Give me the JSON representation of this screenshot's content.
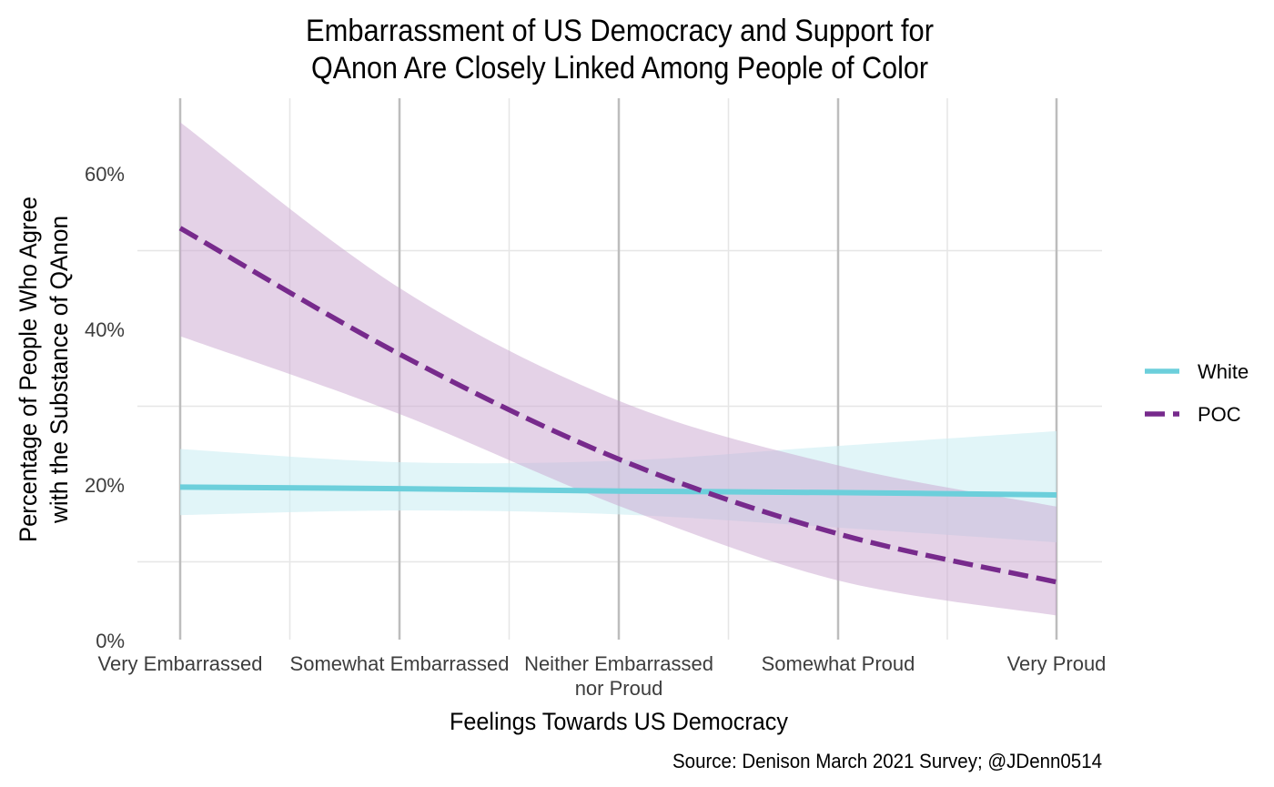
{
  "chart_data": {
    "type": "line",
    "title": [
      "Embarrassment of US Democracy and Support for",
      "QAnon Are Closely Linked Among People of Color"
    ],
    "xlabel": "Feelings Towards US Democracy",
    "ylabel": [
      "Percentage of People Who Agree",
      "with the Substance of QAnon"
    ],
    "caption": "Source: Denison March 2021 Survey; @JDenn0514",
    "categories": [
      [
        "Very Embarrassed"
      ],
      [
        "Somewhat Embarrassed"
      ],
      [
        "Neither Embarrassed",
        "nor Proud"
      ],
      [
        "Somewhat Proud"
      ],
      [
        "Very Proud"
      ]
    ],
    "y_ticks": [
      0,
      20,
      40,
      60
    ],
    "y_tick_labels": [
      "0%",
      "20%",
      "40%",
      "60%"
    ],
    "ylim": [
      0,
      70
    ],
    "grid": true,
    "legend_position": "right",
    "series": [
      {
        "name": "White",
        "color": "#6ccfdb",
        "band_color": "#cdeef4",
        "line_style": "solid",
        "values": [
          19.6,
          19.4,
          19.1,
          18.9,
          18.6
        ],
        "ci_upper": [
          24.5,
          22.8,
          23.0,
          24.9,
          26.8
        ],
        "ci_lower": [
          16.0,
          16.6,
          16.1,
          14.4,
          12.5
        ]
      },
      {
        "name": "POC",
        "color": "#772a8c",
        "band_color": "#c9a6cf",
        "line_style": "dashed",
        "values": [
          52.9,
          36.7,
          23.2,
          13.6,
          7.4
        ],
        "ci_upper": [
          66.5,
          45.2,
          30.7,
          22.4,
          17.1
        ],
        "ci_lower": [
          39.0,
          29.0,
          17.2,
          7.6,
          3.1
        ]
      }
    ]
  }
}
